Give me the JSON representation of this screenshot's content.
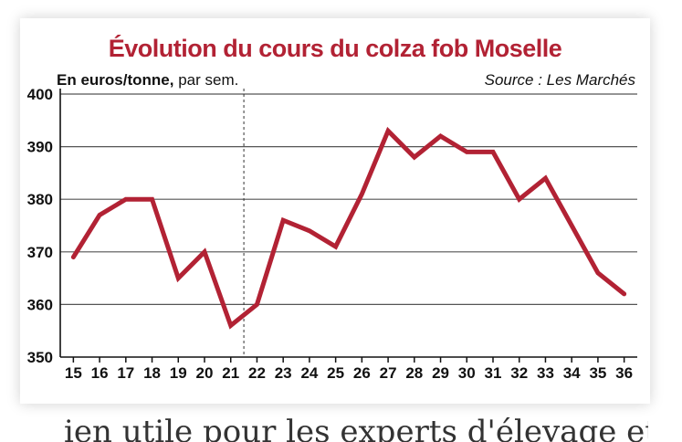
{
  "chart_data": {
    "type": "line",
    "title": "Évolution du cours du colza fob Moselle",
    "unit_label_bold": "En euros/tonne,",
    "unit_label_rest": " par sem.",
    "source": "Source : Les Marchés",
    "x": [
      15,
      16,
      17,
      18,
      19,
      20,
      21,
      22,
      23,
      24,
      25,
      26,
      27,
      28,
      29,
      30,
      31,
      32,
      33,
      34,
      35,
      36
    ],
    "x_tick_labels": [
      "15",
      "16",
      "17",
      "18",
      "19",
      "20",
      "21",
      "22",
      "23",
      "24",
      "25",
      "26",
      "27",
      "28",
      "29",
      "30",
      "31",
      "32",
      "33",
      "34",
      "35",
      "36"
    ],
    "series": [
      {
        "values": [
          369,
          377,
          380,
          380,
          365,
          370,
          356,
          360,
          376,
          374,
          371,
          381,
          393,
          388,
          392,
          389,
          389,
          380,
          384,
          375,
          366,
          362
        ]
      }
    ],
    "y_ticks": [
      350,
      360,
      370,
      380,
      390,
      400
    ],
    "ylim": [
      350,
      400
    ],
    "grid": true,
    "dashed_marker_x": 21.5,
    "line_color": "#b22234"
  },
  "footer": {
    "partial_text": "ien utile pour les experts d'élevage et tout"
  }
}
